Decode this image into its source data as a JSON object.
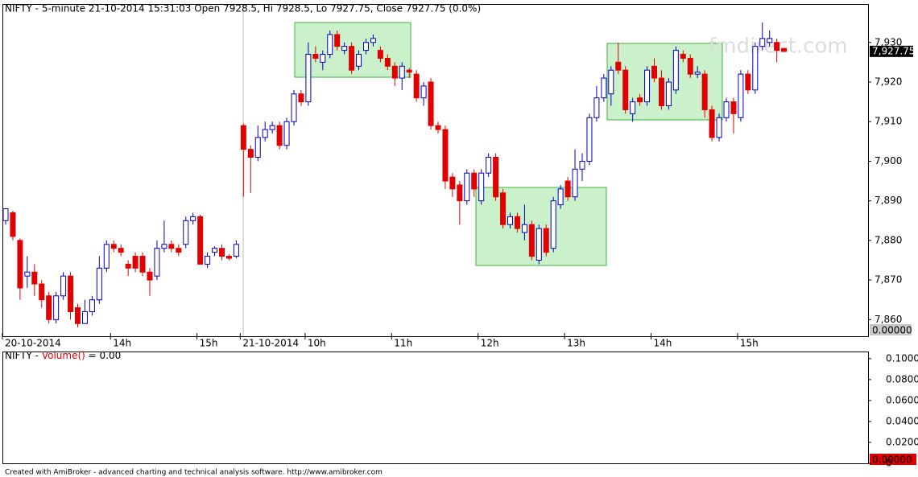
{
  "chart_data": {
    "type": "candlestick",
    "title": "NIFTY - 5-minute 21-10-2014 15:31:03 Open 7928.5, Hi 7928.5, Lo 7927.75, Close 7927.75 (0.0%)",
    "watermark": "fmdirect.com",
    "up_color": "#0000c0",
    "down_color": "#e00000",
    "categories": [
      "20-10-2014",
      null,
      null,
      null,
      null,
      null,
      null,
      null,
      null,
      null,
      null,
      null,
      null,
      null,
      null,
      "14h",
      null,
      null,
      null,
      null,
      null,
      null,
      null,
      null,
      null,
      null,
      null,
      "15h",
      null,
      null,
      null,
      null,
      null,
      "21-10-2014",
      null,
      null,
      null,
      null,
      null,
      null,
      null,
      null,
      "10h",
      null,
      null,
      null,
      null,
      null,
      null,
      null,
      null,
      null,
      null,
      null,
      "11h",
      null,
      null,
      null,
      null,
      null,
      null,
      null,
      null,
      null,
      null,
      null,
      "12h",
      null,
      null,
      null,
      null,
      null,
      null,
      null,
      null,
      null,
      null,
      null,
      "13h",
      null,
      null,
      null,
      null,
      null,
      null,
      null,
      null,
      null,
      null,
      null,
      "14h",
      null,
      null,
      null,
      null,
      null,
      null,
      null,
      null,
      null,
      null,
      null,
      "15h",
      null,
      null,
      null,
      null,
      null,
      null
    ],
    "ohlc": [
      [
        7885,
        7888,
        7884,
        7888
      ],
      [
        7887,
        7887.5,
        7880,
        7881
      ],
      [
        7880,
        7880.5,
        7865,
        7868
      ],
      [
        7871,
        7876,
        7868,
        7872
      ],
      [
        7872,
        7874,
        7866,
        7869
      ],
      [
        7869,
        7870,
        7863,
        7865
      ],
      [
        7866,
        7867,
        7859,
        7860
      ],
      [
        7860,
        7867,
        7859,
        7866
      ],
      [
        7866,
        7872,
        7865,
        7871
      ],
      [
        7871,
        7872,
        7860,
        7862
      ],
      [
        7863,
        7864,
        7858,
        7859
      ],
      [
        7859,
        7865,
        7859,
        7862
      ],
      [
        7862,
        7866,
        7861,
        7865
      ],
      [
        7865,
        7876,
        7864,
        7873
      ],
      [
        7873,
        7880,
        7872,
        7879
      ],
      [
        7879,
        7880,
        7877,
        7878
      ],
      [
        7878,
        7879,
        7876,
        7877
      ],
      [
        7874,
        7875,
        7871,
        7873
      ],
      [
        7876,
        7877,
        7872,
        7873
      ],
      [
        7876,
        7877,
        7871,
        7872
      ],
      [
        7872,
        7873,
        7866,
        7870
      ],
      [
        7871,
        7880,
        7870,
        7878
      ],
      [
        7878,
        7885,
        7877,
        7879
      ],
      [
        7879,
        7880,
        7877,
        7878
      ],
      [
        7878,
        7879,
        7876,
        7877
      ],
      [
        7879,
        7886,
        7878,
        7885
      ],
      [
        7885,
        7887,
        7884,
        7886
      ],
      [
        7886,
        7886.5,
        7874,
        7874
      ],
      [
        7874,
        7877,
        7873,
        7876
      ],
      [
        7877,
        7878.5,
        7876,
        7878
      ],
      [
        7878,
        7879,
        7875,
        7876
      ],
      [
        7876,
        7876.5,
        7875,
        7875.5
      ],
      [
        7876,
        7880,
        7875.5,
        7879
      ],
      [
        7909,
        7909.5,
        7891,
        7903
      ],
      [
        7903,
        7904,
        7892,
        7901
      ],
      [
        7901,
        7909,
        7900,
        7906
      ],
      [
        7906,
        7910,
        7905,
        7908
      ],
      [
        7908,
        7910,
        7907,
        7909
      ],
      [
        7909,
        7910,
        7903,
        7904
      ],
      [
        7904,
        7911,
        7903,
        7910
      ],
      [
        7910,
        7918,
        7909,
        7917
      ],
      [
        7917,
        7918,
        7914,
        7915
      ],
      [
        7915,
        7930,
        7914,
        7927
      ],
      [
        7927,
        7929,
        7925,
        7926
      ],
      [
        7925,
        7928,
        7923,
        7927
      ],
      [
        7927,
        7933,
        7926,
        7932
      ],
      [
        7932,
        7933,
        7928,
        7929
      ],
      [
        7928,
        7930,
        7927,
        7929
      ],
      [
        7929,
        7930,
        7922,
        7923
      ],
      [
        7924,
        7928,
        7923,
        7927
      ],
      [
        7928,
        7931,
        7927,
        7930
      ],
      [
        7930,
        7932,
        7929,
        7931
      ],
      [
        7928,
        7929,
        7925,
        7926
      ],
      [
        7926,
        7927,
        7923,
        7924
      ],
      [
        7924,
        7925,
        7919,
        7921
      ],
      [
        7921,
        7925,
        7918,
        7924
      ],
      [
        7923,
        7923.5,
        7921,
        7922.5
      ],
      [
        7922,
        7923,
        7915,
        7916
      ],
      [
        7916,
        7920,
        7914,
        7919
      ],
      [
        7920,
        7921,
        7908,
        7909
      ],
      [
        7909,
        7910,
        7907,
        7908
      ],
      [
        7908,
        7909,
        7893,
        7895
      ],
      [
        7896,
        7897,
        7891,
        7893
      ],
      [
        7894,
        7895,
        7884,
        7890
      ],
      [
        7890,
        7898,
        7889,
        7897
      ],
      [
        7897,
        7898,
        7891,
        7893
      ],
      [
        7890,
        7898,
        7889,
        7897
      ],
      [
        7897,
        7902,
        7896,
        7901
      ],
      [
        7901,
        7902,
        7890,
        7891
      ],
      [
        7892,
        7893,
        7883,
        7884
      ],
      [
        7884,
        7887,
        7883,
        7886
      ],
      [
        7886,
        7887,
        7882,
        7883
      ],
      [
        7882,
        7889,
        7880,
        7884
      ],
      [
        7884,
        7885,
        7875,
        7876
      ],
      [
        7875,
        7884,
        7874,
        7883
      ],
      [
        7883,
        7884,
        7876,
        7877
      ],
      [
        7878,
        7891,
        7877,
        7890
      ],
      [
        7889,
        7894,
        7888,
        7893
      ],
      [
        7895,
        7896,
        7890,
        7891
      ],
      [
        7891,
        7903,
        7890,
        7898
      ],
      [
        7898,
        7902,
        7895,
        7900
      ],
      [
        7900,
        7912,
        7899,
        7911
      ],
      [
        7911,
        7919,
        7910,
        7916
      ],
      [
        7916,
        7922,
        7915,
        7921
      ],
      [
        7917,
        7924,
        7914,
        7923
      ],
      [
        7925,
        7930,
        7922,
        7923
      ],
      [
        7923,
        7924,
        7912,
        7913
      ],
      [
        7912,
        7916,
        7910,
        7915
      ],
      [
        7916,
        7917,
        7914,
        7915
      ],
      [
        7915,
        7924,
        7914,
        7923
      ],
      [
        7924,
        7926,
        7920,
        7921
      ],
      [
        7921,
        7923,
        7913,
        7914
      ],
      [
        7914,
        7921,
        7913,
        7920
      ],
      [
        7918,
        7929,
        7917,
        7928
      ],
      [
        7927,
        7928,
        7925,
        7926
      ],
      [
        7926,
        7927,
        7921,
        7922
      ],
      [
        7922,
        7924,
        7921,
        7922.5
      ],
      [
        7922,
        7923,
        7911,
        7913
      ],
      [
        7913,
        7914,
        7905,
        7906
      ],
      [
        7906,
        7912,
        7905,
        7911
      ],
      [
        7911,
        7916,
        7910,
        7915
      ],
      [
        7915,
        7916,
        7907,
        7912
      ],
      [
        7911,
        7923,
        7910,
        7922
      ],
      [
        7922,
        7923,
        7917,
        7918
      ],
      [
        7918,
        7930,
        7917,
        7929
      ],
      [
        7929,
        7935,
        7928,
        7931
      ],
      [
        7930,
        7933,
        7929,
        7931
      ],
      [
        7930,
        7931,
        7925,
        7928
      ],
      [
        7928.5,
        7928.5,
        7927.75,
        7927.75
      ]
    ],
    "ylim": [
      7855.8,
      7939.5
    ],
    "yticks": [
      {
        "value": 7860,
        "label": "7,860"
      },
      {
        "value": 7870,
        "label": "7,870"
      },
      {
        "value": 7880,
        "label": "7,880"
      },
      {
        "value": 7890,
        "label": "7,890"
      },
      {
        "value": 7900,
        "label": "7,900"
      },
      {
        "value": 7910,
        "label": "7,910"
      },
      {
        "value": 7920,
        "label": "7,920"
      },
      {
        "value": 7930,
        "label": "7,930"
      }
    ],
    "last_price": {
      "value": 7927.75,
      "label": "7,927.75"
    },
    "axis_readout": "0.00000",
    "volume_title": {
      "prefix": "NIFTY - ",
      "name": "Volume()",
      "suffix": " = 0.00"
    },
    "y2lim": [
      0,
      0.106
    ],
    "y2ticks": [
      {
        "value": 0.1,
        "label": "0.1000"
      },
      {
        "value": 0.08,
        "label": "0.0800"
      },
      {
        "value": 0.06,
        "label": "0.0600"
      },
      {
        "value": 0.04,
        "label": "0.0400"
      },
      {
        "value": 0.02,
        "label": "0.0200"
      },
      0
    ],
    "volume_readout": "0.00000",
    "footer": "Created with AmiBroker - advanced charting and technical analysis software. http://www.amibroker.com"
  }
}
